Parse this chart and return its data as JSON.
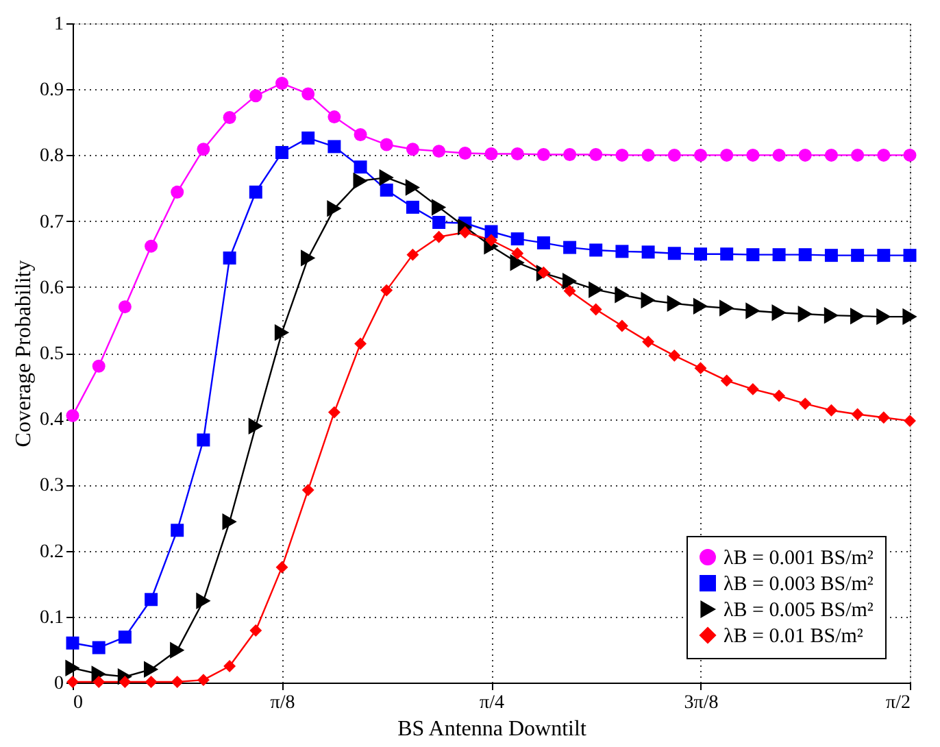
{
  "chart_data": {
    "type": "line",
    "xlabel": "BS Antenna Downtilt",
    "ylabel": "Coverage Probability",
    "x": [
      0,
      0.0491,
      0.0982,
      0.1473,
      0.1963,
      0.2454,
      0.2945,
      0.3436,
      0.3927,
      0.4418,
      0.4909,
      0.54,
      0.589,
      0.6381,
      0.6872,
      0.7363,
      0.7854,
      0.8345,
      0.8836,
      0.9327,
      0.9817,
      1.0308,
      1.0799,
      1.129,
      1.1781,
      1.2272,
      1.2763,
      1.3254,
      1.3744,
      1.4235,
      1.4726,
      1.5217,
      1.5708
    ],
    "series": [
      {
        "name": "λB = 0.001 BS/m²",
        "color": "#ff00ff",
        "marker": "circle",
        "values": [
          0.405,
          0.48,
          0.57,
          0.662,
          0.744,
          0.809,
          0.857,
          0.89,
          0.909,
          0.893,
          0.858,
          0.831,
          0.816,
          0.809,
          0.806,
          0.803,
          0.802,
          0.802,
          0.801,
          0.801,
          0.801,
          0.8,
          0.8,
          0.8,
          0.8,
          0.8,
          0.8,
          0.8,
          0.8,
          0.8,
          0.8,
          0.8,
          0.8
        ]
      },
      {
        "name": "λB = 0.003 BS/m²",
        "color": "#0000ff",
        "marker": "square",
        "values": [
          0.06,
          0.053,
          0.069,
          0.126,
          0.231,
          0.368,
          0.644,
          0.744,
          0.804,
          0.826,
          0.813,
          0.782,
          0.747,
          0.721,
          0.698,
          0.697,
          0.684,
          0.673,
          0.667,
          0.66,
          0.656,
          0.654,
          0.653,
          0.651,
          0.65,
          0.65,
          0.649,
          0.649,
          0.649,
          0.648,
          0.648,
          0.648,
          0.648
        ]
      },
      {
        "name": "λB = 0.005 BS/m²",
        "color": "#000000",
        "marker": "triangle-right",
        "values": [
          0.022,
          0.013,
          0.009,
          0.02,
          0.049,
          0.124,
          0.244,
          0.389,
          0.531,
          0.644,
          0.719,
          0.761,
          0.766,
          0.751,
          0.721,
          0.691,
          0.662,
          0.637,
          0.621,
          0.609,
          0.596,
          0.588,
          0.58,
          0.575,
          0.571,
          0.568,
          0.564,
          0.561,
          0.559,
          0.557,
          0.556,
          0.555,
          0.555
        ]
      },
      {
        "name": "λB = 0.01 BS/m²",
        "color": "#ff0000",
        "marker": "diamond",
        "values": [
          0.001,
          0.001,
          0.001,
          0.001,
          0.001,
          0.004,
          0.025,
          0.079,
          0.175,
          0.292,
          0.41,
          0.514,
          0.595,
          0.649,
          0.676,
          0.683,
          0.671,
          0.651,
          0.622,
          0.594,
          0.566,
          0.541,
          0.517,
          0.496,
          0.477,
          0.458,
          0.445,
          0.435,
          0.423,
          0.413,
          0.407,
          0.402,
          0.397
        ]
      }
    ],
    "xlim": [
      0,
      1.5708
    ],
    "xticks": [
      0,
      {
        "value": 0.3927,
        "label": "π/8"
      },
      {
        "value": 0.7854,
        "label": "π/4"
      },
      {
        "value": 1.1781,
        "label": "3π/8"
      },
      {
        "value": 1.5708,
        "label": "π/2"
      }
    ],
    "ylim": [
      0,
      1
    ],
    "yticks": [
      0,
      0.1,
      0.2,
      0.3,
      0.4,
      0.5,
      0.6,
      0.7,
      0.8,
      0.9,
      1
    ],
    "grid": true,
    "legend": "bottom right",
    "line_style": "solid"
  }
}
